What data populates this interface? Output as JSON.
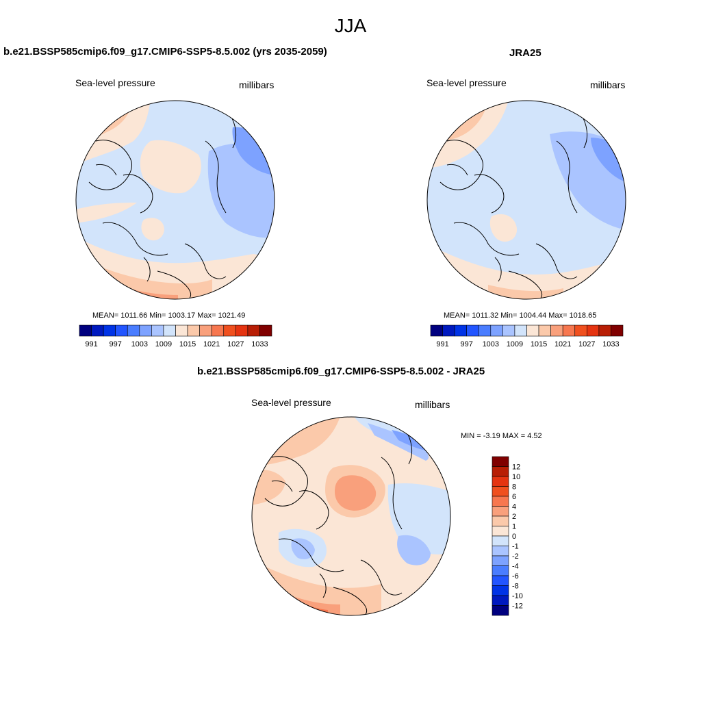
{
  "title": "JJA",
  "panels": [
    {
      "name": "model",
      "title": "b.e21.BSSP585cmip6.f09_g17.CMIP6-SSP5-8.5.002 (yrs 2035-2059)",
      "variable": "Sea-level pressure",
      "units": "millibars",
      "stats": "MEAN= 1011.66  Min= 1003.17  Max= 1021.49"
    },
    {
      "name": "obs",
      "title": "JRA25",
      "variable": "Sea-level pressure",
      "units": "millibars",
      "stats": "MEAN= 1011.32  Min= 1004.44  Max= 1018.65"
    },
    {
      "name": "diff",
      "title": "b.e21.BSSP585cmip6.f09_g17.CMIP6-SSP5-8.5.002 - JRA25",
      "variable": "Sea-level pressure",
      "units": "millibars",
      "stats": "MIN =  -3.19 MAX =   4.52"
    }
  ],
  "colorbar_abs": {
    "colors": [
      "#00007f",
      "#0019bf",
      "#0033e6",
      "#2255ff",
      "#4a7dff",
      "#7da2ff",
      "#aac4ff",
      "#d2e4fb",
      "#fbe6d6",
      "#fbc9aa",
      "#f9a07c",
      "#f7774f",
      "#f0501f",
      "#e53411",
      "#b81e05",
      "#800000"
    ],
    "tick_labels": [
      "991",
      "997",
      "1003",
      "1009",
      "1015",
      "1021",
      "1027",
      "1033"
    ]
  },
  "colorbar_diff": {
    "colors": [
      "#800000",
      "#b81e05",
      "#e53411",
      "#f0501f",
      "#f7774f",
      "#f9a07c",
      "#fbc9aa",
      "#fbe6d6",
      "#d2e4fb",
      "#aac4ff",
      "#7da2ff",
      "#4a7dff",
      "#2255ff",
      "#0033e6",
      "#0019bf",
      "#00007f"
    ],
    "tick_labels": [
      "12",
      "10",
      "8",
      "6",
      "4",
      "2",
      "1",
      "0",
      "-1",
      "-2",
      "-4",
      "-6",
      "-8",
      "-10",
      "-12"
    ]
  }
}
